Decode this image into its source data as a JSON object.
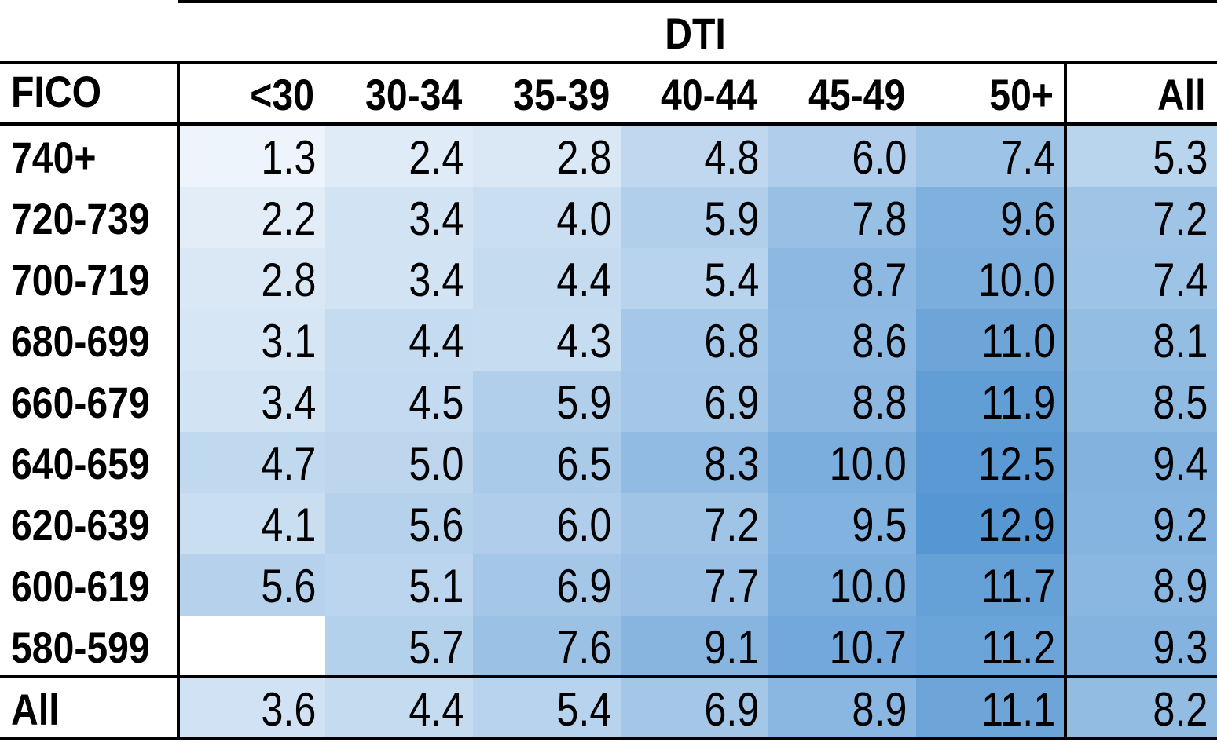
{
  "chart_data": {
    "type": "heatmap",
    "column_group_label": "DTI",
    "row_header": "FICO",
    "columns": [
      "<30",
      "30-34",
      "35-39",
      "40-44",
      "45-49",
      "50+",
      "All"
    ],
    "rows": [
      {
        "label": "740+",
        "values": [
          "1.3",
          "2.4",
          "2.8",
          "4.8",
          "6.0",
          "7.4",
          "5.3"
        ]
      },
      {
        "label": "720-739",
        "values": [
          "2.2",
          "3.4",
          "4.0",
          "5.9",
          "7.8",
          "9.6",
          "7.2"
        ]
      },
      {
        "label": "700-719",
        "values": [
          "2.8",
          "3.4",
          "4.4",
          "5.4",
          "8.7",
          "10.0",
          "7.4"
        ]
      },
      {
        "label": "680-699",
        "values": [
          "3.1",
          "4.4",
          "4.3",
          "6.8",
          "8.6",
          "11.0",
          "8.1"
        ]
      },
      {
        "label": "660-679",
        "values": [
          "3.4",
          "4.5",
          "5.9",
          "6.9",
          "8.8",
          "11.9",
          "8.5"
        ]
      },
      {
        "label": "640-659",
        "values": [
          "4.7",
          "5.0",
          "6.5",
          "8.3",
          "10.0",
          "12.5",
          "9.4"
        ]
      },
      {
        "label": "620-639",
        "values": [
          "4.1",
          "5.6",
          "6.0",
          "7.2",
          "9.5",
          "12.9",
          "9.2"
        ]
      },
      {
        "label": "600-619",
        "values": [
          "5.6",
          "5.1",
          "6.9",
          "7.7",
          "10.0",
          "11.7",
          "8.9"
        ]
      },
      {
        "label": "580-599",
        "values": [
          "",
          "5.7",
          "7.6",
          "9.1",
          "10.7",
          "11.2",
          "9.3"
        ]
      },
      {
        "label": "All",
        "values": [
          "3.6",
          "4.4",
          "5.4",
          "6.9",
          "8.9",
          "11.1",
          "8.2"
        ]
      }
    ],
    "color_scale": {
      "low": "#ffffff",
      "high": "#5596d3",
      "min": 0,
      "max": 12.9
    },
    "empty_cell_color": "#ffffff"
  }
}
